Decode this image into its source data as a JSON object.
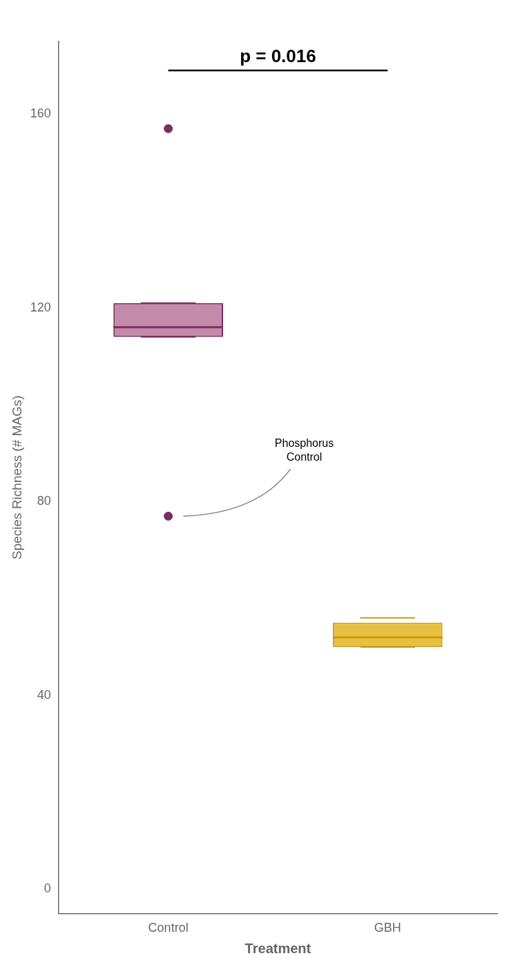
{
  "chart_data": {
    "type": "box",
    "xlabel": "Treatment",
    "ylabel": "Species Richness (# MAGs)",
    "categories": [
      "Control",
      "GBH"
    ],
    "boxes": [
      {
        "q1": 114,
        "median": 116,
        "q3": 121,
        "whisker_low": 114,
        "whisker_high": 121,
        "outliers": [
          157,
          77
        ],
        "color": "#C48AAA",
        "edge_color": "#7B2D5E"
      },
      {
        "q1": 50,
        "median": 52,
        "q3": 55,
        "whisker_low": 50,
        "whisker_high": 56,
        "outliers": [],
        "color": "#E8C040",
        "edge_color": "#C89A10"
      }
    ],
    "ylim": [
      -5,
      175
    ],
    "yticks": [
      0,
      40,
      80,
      120,
      160
    ],
    "grid": false,
    "significance": {
      "text": "p = 0.016",
      "y": 169,
      "from": "Control",
      "to": "GBH"
    },
    "annotations": [
      {
        "text": "Phosphorus\nControl",
        "category": "Control",
        "y": 77,
        "text_y": 93
      }
    ]
  }
}
